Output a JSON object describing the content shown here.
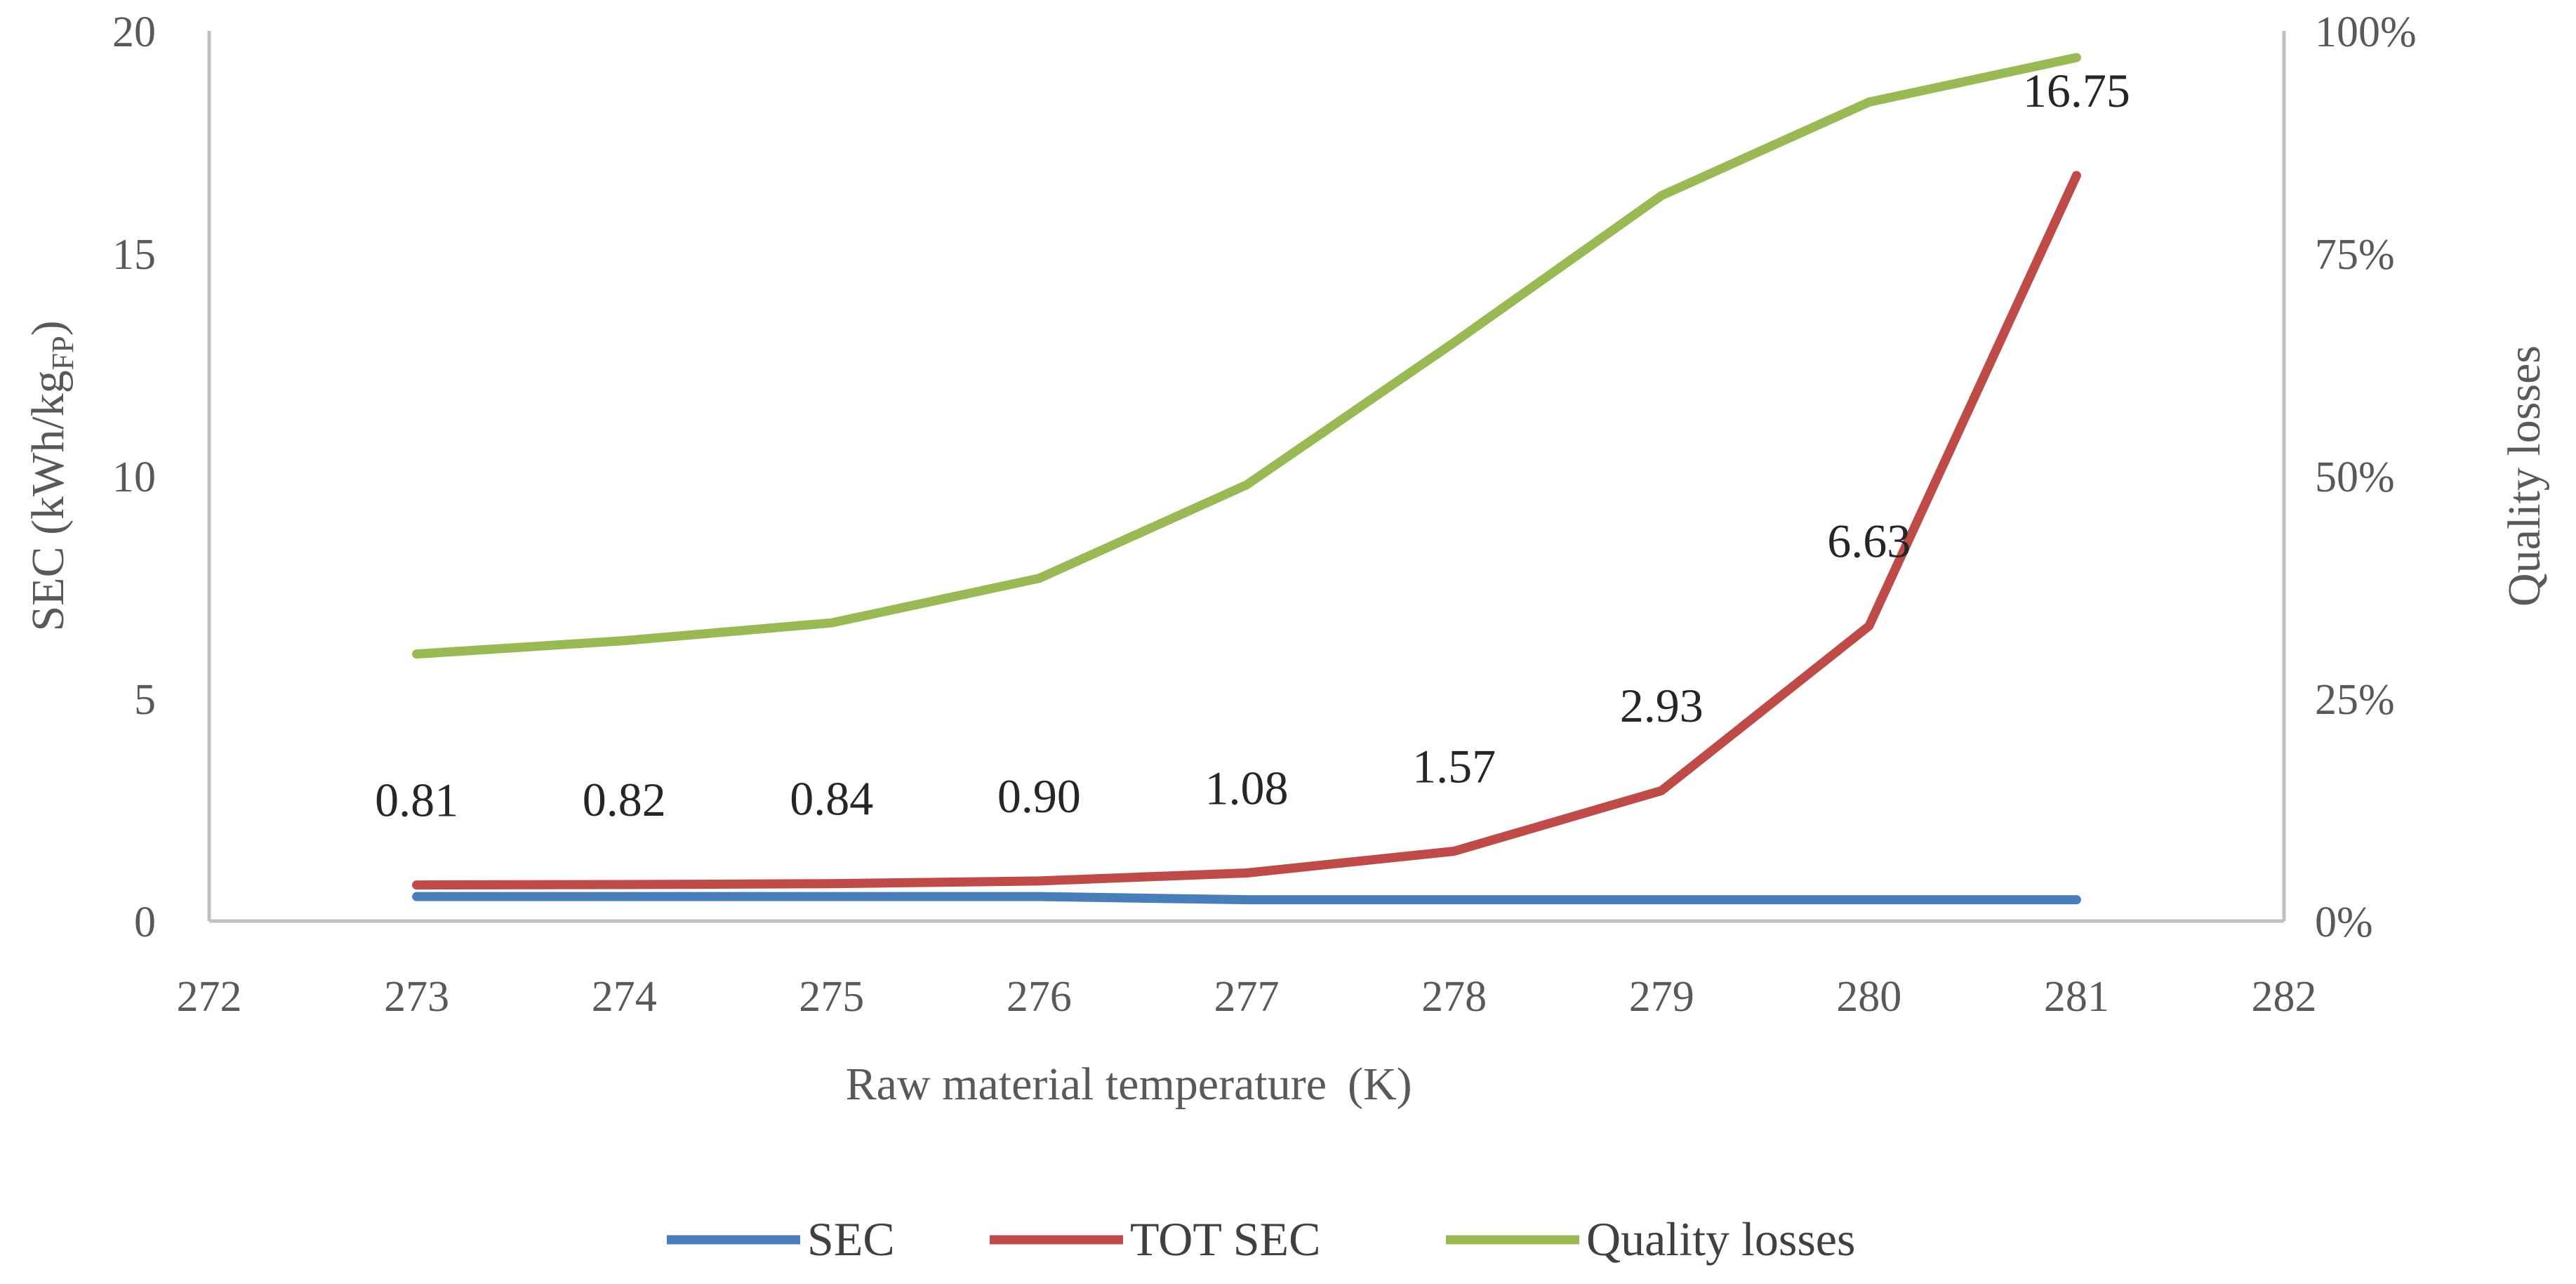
{
  "chart_data": {
    "type": "line",
    "x": [
      273,
      274,
      275,
      276,
      277,
      278,
      279,
      280,
      281
    ],
    "xlim": [
      272,
      282
    ],
    "x_ticks": [
      "272",
      "273",
      "274",
      "275",
      "276",
      "277",
      "278",
      "279",
      "280",
      "281",
      "282"
    ],
    "xlabel": "Raw material temperature",
    "xlabel_unit": "(K)",
    "y_left": {
      "label": "SEC (kWh/kg",
      "label_sub": "FP",
      "label_close": ")",
      "ylim": [
        0,
        20
      ],
      "ticks": [
        "0",
        "5",
        "10",
        "15",
        "20"
      ]
    },
    "y_right": {
      "label": "Quality losses",
      "ylim": [
        0,
        1
      ],
      "ticks": [
        "0%",
        "25%",
        "50%",
        "75%",
        "100%"
      ]
    },
    "series": [
      {
        "name": "SEC",
        "axis": "left",
        "color": "#4A7EBB",
        "values": [
          0.55,
          0.55,
          0.55,
          0.55,
          0.48,
          0.48,
          0.48,
          0.48,
          0.48
        ]
      },
      {
        "name": "TOT SEC",
        "axis": "left",
        "color": "#BE4B48",
        "values": [
          0.81,
          0.82,
          0.84,
          0.9,
          1.08,
          1.57,
          2.93,
          6.63,
          16.75
        ],
        "data_labels": [
          "0.81",
          "0.82",
          "0.84",
          "0.90",
          "1.08",
          "1.57",
          "2.93",
          "6.63",
          "16.75"
        ]
      },
      {
        "name": "Quality losses",
        "axis": "right",
        "color": "#98B954",
        "values": [
          0.3,
          0.315,
          0.335,
          0.385,
          0.49,
          0.65,
          0.815,
          0.92,
          0.97
        ]
      }
    ],
    "legend_position": "bottom",
    "grid": false
  }
}
